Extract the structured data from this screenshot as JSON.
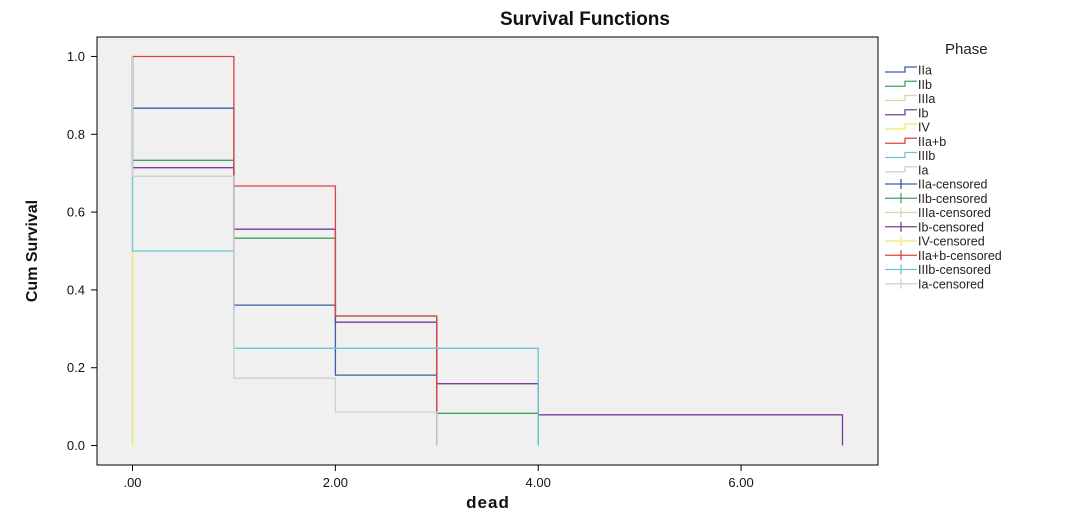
{
  "chart_data": {
    "type": "line",
    "title": "Survival Functions",
    "xlabel": "dead",
    "ylabel": "Cum Survival",
    "xlim": [
      -0.35,
      7.35
    ],
    "ylim": [
      -0.05,
      1.05
    ],
    "x_ticks": [
      0,
      2,
      4,
      6
    ],
    "x_tick_labels": [
      ".00",
      "2.00",
      "4.00",
      "6.00"
    ],
    "y_ticks": [
      0.0,
      0.2,
      0.4,
      0.6,
      0.8,
      1.0
    ],
    "y_tick_labels": [
      "0.0",
      "0.2",
      "0.4",
      "0.6",
      "0.8",
      "1.0"
    ],
    "grid": false,
    "legend_title": "Phase",
    "legend_placement": "right",
    "series": [
      {
        "name": "IIa",
        "color": "#3b5ea9",
        "steps": [
          [
            0,
            1.0
          ],
          [
            0,
            0.867
          ],
          [
            1,
            0.867
          ],
          [
            1,
            0.361
          ],
          [
            2,
            0.361
          ],
          [
            2,
            0.181
          ],
          [
            3,
            0.181
          ],
          [
            3,
            0.0
          ]
        ],
        "censored": [
          [
            1,
            0.361
          ]
        ]
      },
      {
        "name": "IIb",
        "color": "#3fa35f",
        "steps": [
          [
            0,
            1.0
          ],
          [
            0,
            0.733
          ],
          [
            1,
            0.733
          ],
          [
            1,
            0.533
          ],
          [
            2,
            0.533
          ],
          [
            2,
            0.333
          ],
          [
            3,
            0.333
          ],
          [
            3,
            0.083
          ],
          [
            4,
            0.083
          ],
          [
            4,
            0.0
          ]
        ],
        "censored": [
          [
            2,
            0.333
          ]
        ]
      },
      {
        "name": "IIIa",
        "color": "#d4dca4",
        "steps": [
          [
            0,
            1.0
          ],
          [
            0,
            0.0
          ]
        ],
        "censored": []
      },
      {
        "name": "Ib",
        "color": "#7a3e9a",
        "steps": [
          [
            0,
            1.0
          ],
          [
            0,
            0.714
          ],
          [
            1,
            0.714
          ],
          [
            1,
            0.556
          ],
          [
            2,
            0.556
          ],
          [
            2,
            0.317
          ],
          [
            3,
            0.317
          ],
          [
            3,
            0.159
          ],
          [
            4,
            0.159
          ],
          [
            4,
            0.079
          ],
          [
            7,
            0.079
          ],
          [
            7,
            0.0
          ]
        ],
        "censored": []
      },
      {
        "name": "IV",
        "color": "#f2e66a",
        "steps": [
          [
            0,
            0.5
          ],
          [
            0,
            0.0
          ]
        ],
        "censored": []
      },
      {
        "name": "IIa+b",
        "color": "#e04040",
        "steps": [
          [
            0,
            1.0
          ],
          [
            1,
            1.0
          ],
          [
            1,
            0.667
          ],
          [
            2,
            0.667
          ],
          [
            2,
            0.333
          ],
          [
            3,
            0.333
          ],
          [
            3,
            0.0
          ]
        ],
        "censored": []
      },
      {
        "name": "IIIb",
        "color": "#6cc6d4",
        "steps": [
          [
            0,
            1.0
          ],
          [
            0,
            0.5
          ],
          [
            1,
            0.5
          ],
          [
            1,
            0.25
          ],
          [
            4,
            0.25
          ],
          [
            4,
            0.0
          ]
        ],
        "censored": []
      },
      {
        "name": "Ia",
        "color": "#cfcfcf",
        "steps": [
          [
            0,
            1.0
          ],
          [
            0,
            0.692
          ],
          [
            1,
            0.692
          ],
          [
            1,
            0.173
          ],
          [
            2,
            0.173
          ],
          [
            2,
            0.086
          ],
          [
            3,
            0.086
          ],
          [
            3,
            0.0
          ]
        ],
        "censored": []
      }
    ],
    "legend_entries": [
      {
        "label": "IIa",
        "color": "#3b5ea9",
        "kind": "step"
      },
      {
        "label": "IIb",
        "color": "#3fa35f",
        "kind": "step"
      },
      {
        "label": "IIIa",
        "color": "#d4dca4",
        "kind": "step"
      },
      {
        "label": "Ib",
        "color": "#7a3e9a",
        "kind": "step"
      },
      {
        "label": "IV",
        "color": "#f2e66a",
        "kind": "step"
      },
      {
        "label": "IIa+b",
        "color": "#e04040",
        "kind": "step"
      },
      {
        "label": "IIIb",
        "color": "#6cc6d4",
        "kind": "step"
      },
      {
        "label": "Ia",
        "color": "#cfcfcf",
        "kind": "step"
      },
      {
        "label": "IIa-censored",
        "color": "#3b5ea9",
        "kind": "censor"
      },
      {
        "label": "IIb-censored",
        "color": "#3fa35f",
        "kind": "censor"
      },
      {
        "label": "IIIa-censored",
        "color": "#d4dca4",
        "kind": "censor"
      },
      {
        "label": "Ib-censored",
        "color": "#7a3e9a",
        "kind": "censor"
      },
      {
        "label": "IV-censored",
        "color": "#f2e66a",
        "kind": "censor"
      },
      {
        "label": "IIa+b-censored",
        "color": "#e04040",
        "kind": "censor"
      },
      {
        "label": "IIIb-censored",
        "color": "#6cc6d4",
        "kind": "censor"
      },
      {
        "label": "Ia-censored",
        "color": "#cfcfcf",
        "kind": "censor"
      }
    ],
    "plot_background": "#f0f0f0"
  }
}
